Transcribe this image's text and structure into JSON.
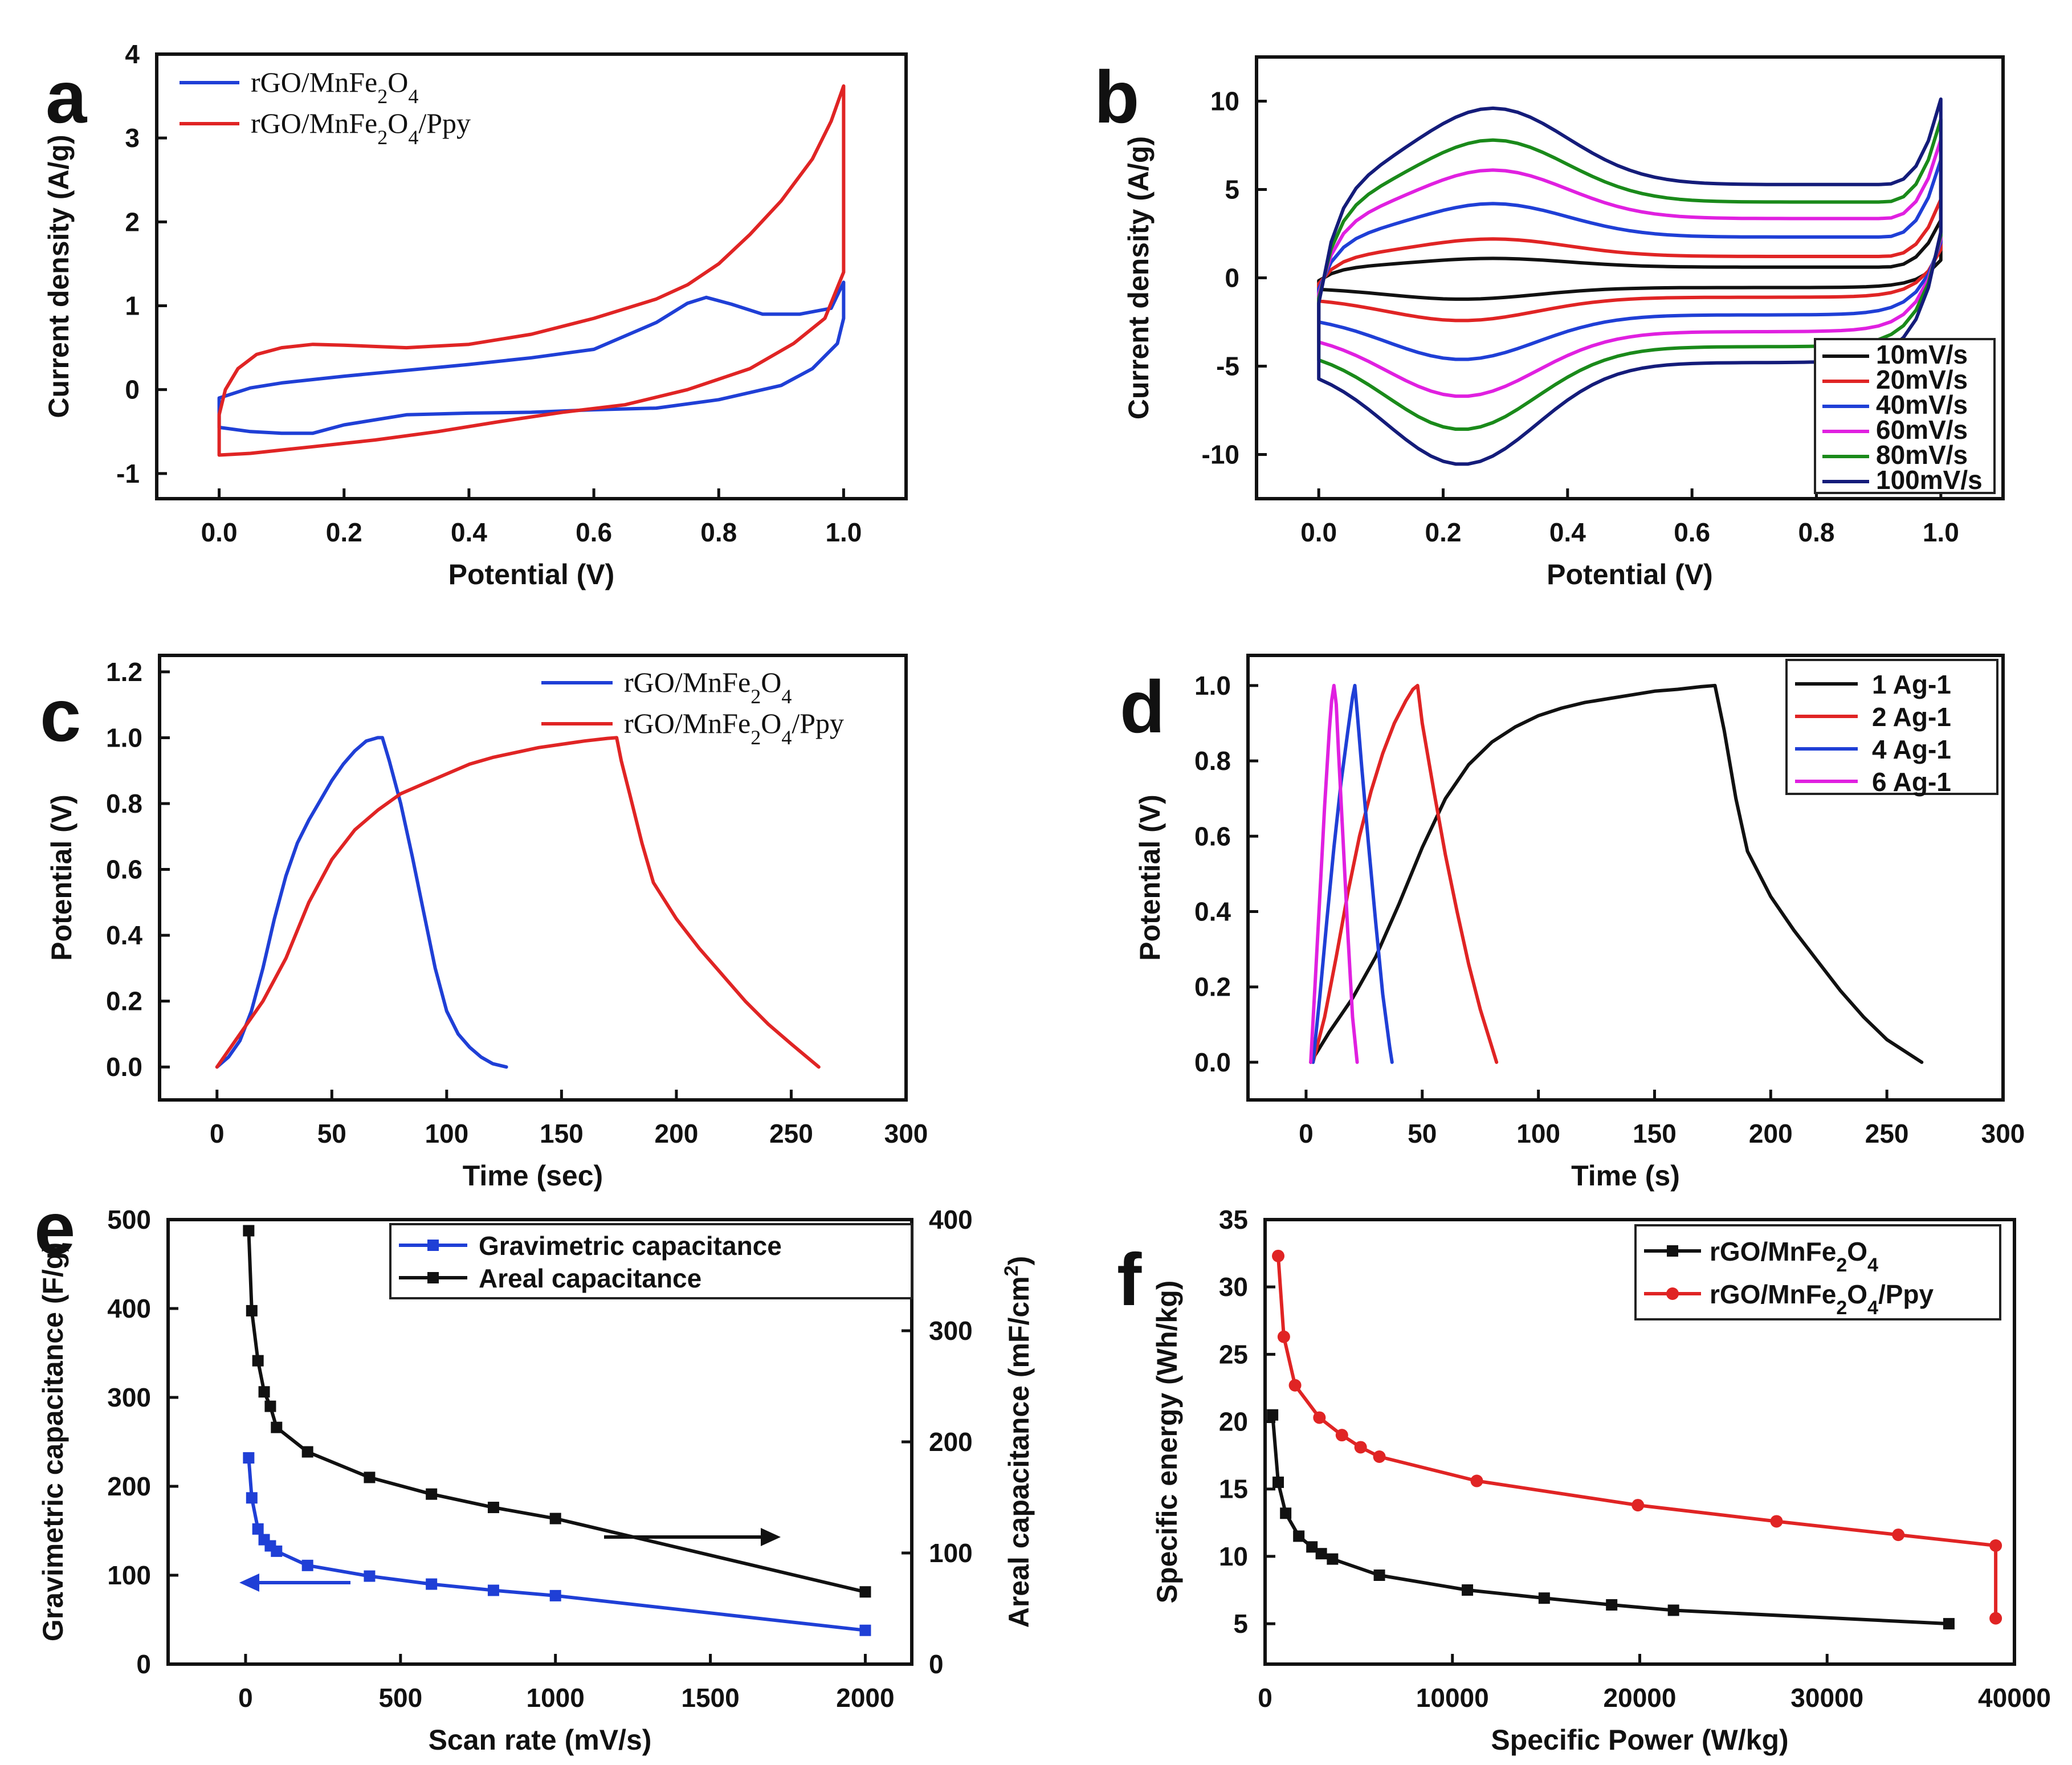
{
  "figure": {
    "panels": [
      "a",
      "b",
      "c",
      "d",
      "e",
      "f"
    ]
  },
  "chart_data": [
    {
      "id": "a",
      "type": "line",
      "xlabel": "Potential (V)",
      "ylabel": "Current density (A/g)",
      "xlim": [
        -0.1,
        1.1
      ],
      "ylim": [
        -1.3,
        4.0
      ],
      "xticks": [
        0.0,
        0.2,
        0.4,
        0.6,
        0.8,
        1.0
      ],
      "xtick_labels": [
        "0.0",
        "0.2",
        "0.4",
        "0.6",
        "0.8",
        "1.0"
      ],
      "yticks": [
        -1,
        0,
        1,
        2,
        3,
        4
      ],
      "ytick_labels": [
        "-1",
        "0",
        "1",
        "2",
        "3",
        "4"
      ],
      "legend_position": "top-left",
      "series": [
        {
          "name": "rGO/MnFe2O4",
          "legend_base": "rGO/MnFe",
          "legend_sub1": "2",
          "legend_mid": "O",
          "legend_sub2": "4",
          "legend_tail": "",
          "color": "#1f3fd6",
          "x": [
            0.0,
            0.05,
            0.1,
            0.2,
            0.3,
            0.4,
            0.5,
            0.6,
            0.7,
            0.75,
            0.78,
            0.82,
            0.87,
            0.93,
            0.98,
            1.0,
            1.0,
            0.99,
            0.95,
            0.9,
            0.8,
            0.7,
            0.6,
            0.5,
            0.4,
            0.3,
            0.2,
            0.15,
            0.1,
            0.05,
            0.0,
            0.0
          ],
          "y": [
            -0.1,
            0.02,
            0.08,
            0.16,
            0.23,
            0.3,
            0.38,
            0.48,
            0.8,
            1.03,
            1.1,
            1.02,
            0.9,
            0.9,
            0.97,
            1.28,
            0.85,
            0.55,
            0.25,
            0.05,
            -0.12,
            -0.22,
            -0.24,
            -0.27,
            -0.28,
            -0.3,
            -0.42,
            -0.52,
            -0.52,
            -0.5,
            -0.45,
            -0.1
          ]
        },
        {
          "name": "rGO/MnFe2O4/Ppy",
          "legend_base": "rGO/MnFe",
          "legend_sub1": "2",
          "legend_mid": "O",
          "legend_sub2": "4",
          "legend_tail": "/Ppy",
          "color": "#e02424",
          "x": [
            0.0,
            0.01,
            0.03,
            0.06,
            0.1,
            0.15,
            0.2,
            0.3,
            0.4,
            0.5,
            0.6,
            0.7,
            0.75,
            0.8,
            0.85,
            0.9,
            0.95,
            0.98,
            1.0,
            1.0,
            0.97,
            0.92,
            0.85,
            0.75,
            0.65,
            0.55,
            0.45,
            0.35,
            0.25,
            0.15,
            0.1,
            0.05,
            0.0,
            0.0
          ],
          "y": [
            -0.3,
            0.0,
            0.25,
            0.42,
            0.5,
            0.54,
            0.53,
            0.5,
            0.54,
            0.66,
            0.85,
            1.08,
            1.25,
            1.5,
            1.85,
            2.25,
            2.75,
            3.2,
            3.62,
            1.4,
            0.85,
            0.55,
            0.25,
            0.0,
            -0.18,
            -0.27,
            -0.38,
            -0.5,
            -0.6,
            -0.68,
            -0.72,
            -0.76,
            -0.78,
            -0.3
          ]
        }
      ]
    },
    {
      "id": "b",
      "type": "line",
      "xlabel": "Potential (V)",
      "ylabel": "Current density (A/g)",
      "xlim": [
        -0.1,
        1.1
      ],
      "ylim": [
        -12.5,
        12.5
      ],
      "xticks": [
        0.0,
        0.2,
        0.4,
        0.6,
        0.8,
        1.0
      ],
      "xtick_labels": [
        "0.0",
        "0.2",
        "0.4",
        "0.6",
        "0.8",
        "1.0"
      ],
      "yticks": [
        -10,
        -5,
        0,
        5,
        10
      ],
      "ytick_labels": [
        "-10",
        "-5",
        "0",
        "5",
        "10"
      ],
      "legend_position": "bottom-right",
      "series": [
        {
          "name": "10mV/s",
          "color": "#111111",
          "scale": 1.1,
          "end_high": 3.3,
          "end_low": 1.0
        },
        {
          "name": "20mV/s",
          "color": "#e02424",
          "scale": 2.2,
          "end_high": 4.5,
          "end_low": 1.6
        },
        {
          "name": "40mV/s",
          "color": "#1f3fd6",
          "scale": 4.2,
          "end_high": 6.8,
          "end_low": 2.0
        },
        {
          "name": "60mV/s",
          "color": "#e020e0",
          "scale": 6.1,
          "end_high": 8.0,
          "end_low": 2.2
        },
        {
          "name": "80mV/s",
          "color": "#1a8a1a",
          "scale": 7.8,
          "end_high": 9.2,
          "end_low": 2.4
        },
        {
          "name": "100mV/s",
          "color": "#141c7a",
          "scale": 9.6,
          "end_high": 10.4,
          "end_low": 2.6
        }
      ]
    },
    {
      "id": "c",
      "type": "line",
      "xlabel": "Time (sec)",
      "ylabel": "Potential (V)",
      "xlim": [
        -25,
        300
      ],
      "ylim": [
        -0.1,
        1.25
      ],
      "xticks": [
        0,
        50,
        100,
        150,
        200,
        250,
        300
      ],
      "xtick_labels": [
        "0",
        "50",
        "100",
        "150",
        "200",
        "250",
        "300"
      ],
      "yticks": [
        0.0,
        0.2,
        0.4,
        0.6,
        0.8,
        1.0,
        1.2
      ],
      "ytick_labels": [
        "0.0",
        "0.2",
        "0.4",
        "0.6",
        "0.8",
        "1.0",
        "1.2"
      ],
      "legend_position": "top-right",
      "series": [
        {
          "name": "rGO/MnFe2O4",
          "legend_base": "rGO/MnFe",
          "legend_sub1": "2",
          "legend_mid": "O",
          "legend_sub2": "4",
          "legend_tail": "",
          "color": "#1f3fd6",
          "x": [
            0,
            5,
            10,
            15,
            20,
            25,
            30,
            35,
            40,
            45,
            50,
            55,
            60,
            65,
            70,
            72,
            75,
            80,
            85,
            90,
            95,
            100,
            105,
            110,
            115,
            120,
            126
          ],
          "y": [
            0.0,
            0.03,
            0.08,
            0.17,
            0.3,
            0.45,
            0.58,
            0.68,
            0.75,
            0.81,
            0.87,
            0.92,
            0.96,
            0.99,
            1.0,
            1.0,
            0.93,
            0.8,
            0.64,
            0.47,
            0.3,
            0.17,
            0.1,
            0.06,
            0.03,
            0.01,
            0.0
          ]
        },
        {
          "name": "rGO/MnFe2O4/Ppy",
          "legend_base": "rGO/MnFe",
          "legend_sub1": "2",
          "legend_mid": "O",
          "legend_sub2": "4",
          "legend_tail": "/Ppy",
          "color": "#e02424",
          "x": [
            0,
            10,
            20,
            30,
            40,
            50,
            60,
            70,
            80,
            90,
            100,
            110,
            120,
            130,
            140,
            150,
            160,
            170,
            174,
            176,
            180,
            185,
            190,
            200,
            210,
            220,
            230,
            240,
            250,
            262
          ],
          "y": [
            0.0,
            0.1,
            0.2,
            0.33,
            0.5,
            0.63,
            0.72,
            0.78,
            0.83,
            0.86,
            0.89,
            0.92,
            0.94,
            0.955,
            0.97,
            0.98,
            0.99,
            0.998,
            1.0,
            0.93,
            0.82,
            0.68,
            0.56,
            0.45,
            0.36,
            0.28,
            0.2,
            0.13,
            0.07,
            0.0
          ]
        }
      ]
    },
    {
      "id": "d",
      "type": "line",
      "xlabel": "Time (s)",
      "ylabel": "Potential (V)",
      "xlim": [
        -25,
        300
      ],
      "ylim": [
        -0.1,
        1.08
      ],
      "xticks": [
        0,
        50,
        100,
        150,
        200,
        250,
        300
      ],
      "xtick_labels": [
        "0",
        "50",
        "100",
        "150",
        "200",
        "250",
        "300"
      ],
      "yticks": [
        0.0,
        0.2,
        0.4,
        0.6,
        0.8,
        1.0
      ],
      "ytick_labels": [
        "0.0",
        "0.2",
        "0.4",
        "0.6",
        "0.8",
        "1.0"
      ],
      "legend_position": "top-right",
      "series": [
        {
          "name": "1 Ag-1",
          "color": "#111111",
          "x": [
            2,
            10,
            20,
            30,
            40,
            50,
            60,
            70,
            80,
            90,
            100,
            110,
            120,
            130,
            140,
            150,
            160,
            170,
            176,
            180,
            185,
            190,
            200,
            210,
            220,
            230,
            240,
            250,
            265
          ],
          "y": [
            0.0,
            0.08,
            0.17,
            0.28,
            0.42,
            0.57,
            0.7,
            0.79,
            0.85,
            0.89,
            0.92,
            0.94,
            0.955,
            0.965,
            0.975,
            0.985,
            0.99,
            0.997,
            1.0,
            0.88,
            0.7,
            0.56,
            0.44,
            0.35,
            0.27,
            0.19,
            0.12,
            0.06,
            0.0
          ]
        },
        {
          "name": "2 Ag-1",
          "color": "#e02424",
          "x": [
            3,
            8,
            13,
            18,
            23,
            28,
            33,
            38,
            43,
            46,
            48,
            50,
            55,
            60,
            65,
            70,
            75,
            80,
            82
          ],
          "y": [
            0.0,
            0.12,
            0.28,
            0.45,
            0.6,
            0.72,
            0.82,
            0.9,
            0.96,
            0.99,
            1.0,
            0.9,
            0.72,
            0.55,
            0.4,
            0.26,
            0.14,
            0.04,
            0.0
          ]
        },
        {
          "name": "4 Ag-1",
          "color": "#1f3fd6",
          "x": [
            3,
            6,
            9,
            12,
            15,
            18,
            20,
            21,
            22,
            24,
            27,
            30,
            33,
            36,
            37
          ],
          "y": [
            0.0,
            0.18,
            0.38,
            0.57,
            0.74,
            0.88,
            0.97,
            1.0,
            0.93,
            0.78,
            0.57,
            0.37,
            0.18,
            0.04,
            0.0
          ]
        },
        {
          "name": "6 Ag-1",
          "color": "#e020e0",
          "x": [
            2,
            4,
            6,
            8,
            10,
            11,
            12,
            13,
            14,
            16,
            18,
            20,
            22
          ],
          "y": [
            0.0,
            0.22,
            0.45,
            0.68,
            0.88,
            0.96,
            1.0,
            0.95,
            0.82,
            0.58,
            0.34,
            0.12,
            0.0
          ]
        }
      ]
    },
    {
      "id": "e",
      "type": "line",
      "xlabel": "Scan rate (mV/s)",
      "ylabel": "Gravimetric capacitance (F/g)",
      "ylabel_right": "Areal capacitance (mF/cm",
      "ylabel_right_sup": "2",
      "ylabel_right_tail": ")",
      "xlim": [
        -250,
        2150
      ],
      "ylim": [
        0,
        500
      ],
      "ylim_right": [
        0,
        400
      ],
      "xticks": [
        0,
        500,
        1000,
        1500,
        2000
      ],
      "xtick_labels": [
        "0",
        "500",
        "1000",
        "1500",
        "2000"
      ],
      "yticks": [
        0,
        100,
        200,
        300,
        400,
        500
      ],
      "ytick_labels": [
        "0",
        "100",
        "200",
        "300",
        "400",
        "500"
      ],
      "yticks_right": [
        0,
        100,
        200,
        300,
        400
      ],
      "ytick_labels_right": [
        "0",
        "100",
        "200",
        "300",
        "400"
      ],
      "legend_position": "top-right",
      "series": [
        {
          "name": "Gravimetric capacitance",
          "axis": "left",
          "color": "#1f3fd6",
          "x": [
            10,
            20,
            40,
            60,
            80,
            100,
            200,
            400,
            600,
            800,
            1000,
            2000
          ],
          "y": [
            232,
            187,
            152,
            140,
            133,
            127,
            111,
            99,
            90,
            83,
            77,
            38
          ]
        },
        {
          "name": "Areal capacitance",
          "axis": "right",
          "color": "#111111",
          "x": [
            10,
            20,
            40,
            60,
            80,
            100,
            200,
            400,
            600,
            800,
            1000,
            2000
          ],
          "y": [
            390,
            318,
            273,
            245,
            232,
            213,
            191,
            168,
            153,
            141,
            131,
            65
          ]
        }
      ]
    },
    {
      "id": "f",
      "type": "line",
      "xlabel": "Specific Power (W/kg)",
      "ylabel": "Specific energy (Wh/kg)",
      "xlim": [
        0,
        40000
      ],
      "ylim": [
        2,
        35
      ],
      "xticks": [
        0,
        10000,
        20000,
        30000,
        40000
      ],
      "xtick_labels": [
        "0",
        "10000",
        "20000",
        "30000",
        "40000"
      ],
      "yticks": [
        5,
        10,
        15,
        20,
        25,
        30,
        35
      ],
      "ytick_labels": [
        "5",
        "10",
        "15",
        "20",
        "25",
        "30",
        "35"
      ],
      "legend_position": "top-right",
      "series": [
        {
          "name": "rGO/MnFe2O4",
          "legend_base": "rGO/MnFe",
          "legend_sub1": "2",
          "legend_mid": "O",
          "legend_sub2": "4",
          "legend_tail": "",
          "color": "#111111",
          "x": [
            400,
            700,
            1100,
            1800,
            2500,
            3000,
            3600,
            6100,
            10800,
            14900,
            18500,
            21800,
            36500
          ],
          "y": [
            20.5,
            15.5,
            13.2,
            11.5,
            10.7,
            10.2,
            9.8,
            8.6,
            7.5,
            6.9,
            6.4,
            6.0,
            5.0
          ]
        },
        {
          "name": "rGO/MnFe2O4/Ppy",
          "legend_base": "rGO/MnFe",
          "legend_sub1": "2",
          "legend_mid": "O",
          "legend_sub2": "4",
          "legend_tail": "/Ppy",
          "color": "#e02424",
          "x": [
            700,
            1000,
            1600,
            2900,
            4100,
            5100,
            6100,
            11300,
            19900,
            27300,
            33800,
            39000,
            39000
          ],
          "y": [
            32.3,
            26.3,
            22.7,
            20.3,
            19.0,
            18.1,
            17.4,
            15.6,
            13.8,
            12.6,
            11.6,
            10.8,
            5.4
          ]
        }
      ]
    }
  ]
}
